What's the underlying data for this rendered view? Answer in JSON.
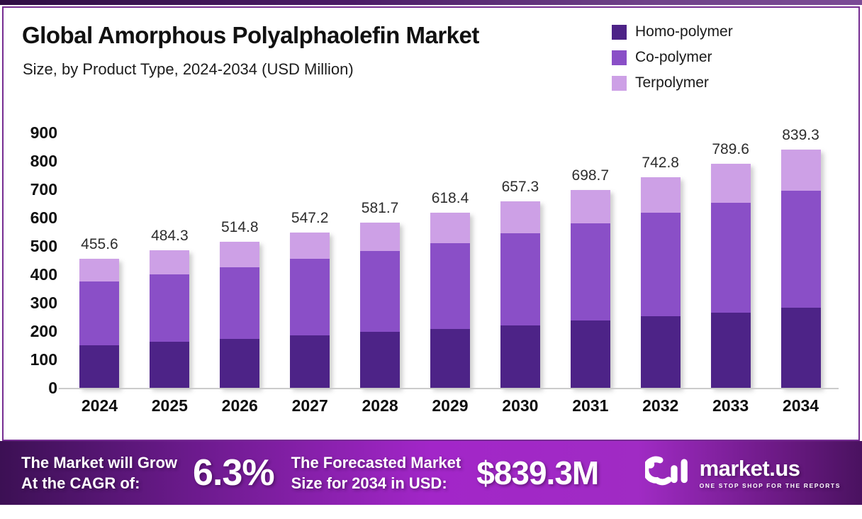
{
  "header": {
    "title": "Global Amorphous Polyalphaolefin Market",
    "subtitle": "Size, by Product Type, 2024-2034 (USD Million)"
  },
  "chart_data": {
    "type": "bar",
    "stacked": true,
    "categories": [
      "2024",
      "2025",
      "2026",
      "2027",
      "2028",
      "2029",
      "2030",
      "2031",
      "2032",
      "2033",
      "2034"
    ],
    "series": [
      {
        "name": "Homo-polymer",
        "color": "#4d2387",
        "values": [
          150.3,
          163.0,
          173.5,
          185.0,
          197.0,
          208.0,
          221.0,
          237.0,
          252.0,
          266.0,
          283.0
        ]
      },
      {
        "name": "Co-polymer",
        "color": "#8a4fc7",
        "values": [
          225.0,
          238.0,
          252.0,
          269.0,
          284.5,
          303.0,
          323.0,
          344.0,
          366.5,
          387.0,
          411.0
        ]
      },
      {
        "name": "Terpolymer",
        "color": "#cda0e6",
        "values": [
          80.3,
          83.3,
          89.3,
          93.2,
          100.2,
          107.4,
          113.3,
          117.7,
          124.3,
          136.6,
          145.3
        ]
      }
    ],
    "totals": [
      455.6,
      484.3,
      514.8,
      547.2,
      581.7,
      618.4,
      657.3,
      698.7,
      742.8,
      789.6,
      839.3
    ],
    "title": "Global Amorphous Polyalphaolefin Market Size, by Product Type, 2024-2034 (USD Million)",
    "xlabel": "",
    "ylabel": "",
    "ylim": [
      0,
      900
    ],
    "ytick_step": 100,
    "grid": false,
    "legend_position": "top-right"
  },
  "footer": {
    "cagr_label_line1": "The Market will Grow",
    "cagr_label_line2": "At the CAGR of:",
    "cagr_value": "6.3%",
    "forecast_label_line1": "The Forecasted Market",
    "forecast_label_line2": "Size for 2034 in USD:",
    "forecast_value": "$839.3M",
    "brand": {
      "name": "market.us",
      "tagline": "ONE STOP SHOP FOR THE REPORTS"
    }
  },
  "colors": {
    "card_border": "#762d92",
    "footer_gradient_left": "#3c1054",
    "footer_gradient_center": "#a226c8",
    "footer_gradient_right": "#4a1260",
    "baseline": "#cbcbcb",
    "homo_polymer": "#4d2387",
    "co_polymer": "#8a4fc7",
    "terpolymer": "#cda0e6"
  }
}
